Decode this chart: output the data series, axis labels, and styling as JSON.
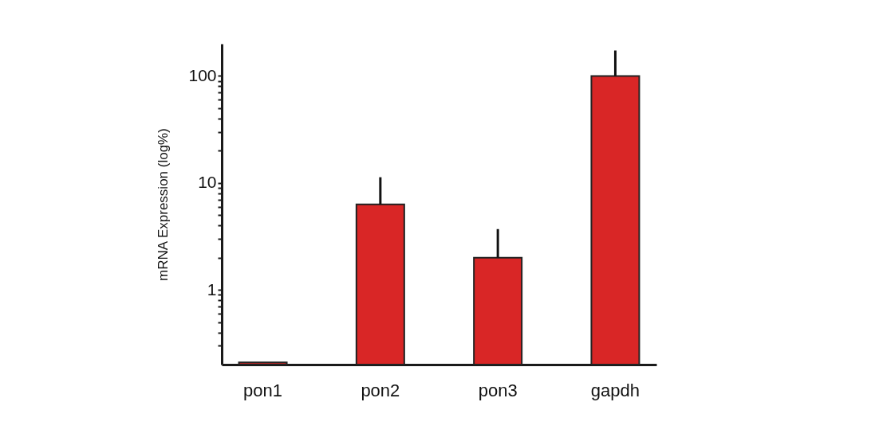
{
  "chart_data": {
    "type": "bar",
    "ylabel": "mRNA Expression (log%)",
    "categories": [
      "pon1",
      "pon2",
      "pon3",
      "gapdh"
    ],
    "series": [
      {
        "color": "#d92626",
        "values": [
          0.21,
          6.3,
          2.0,
          100
        ],
        "errors": [
          null,
          [
            6.3,
            11.3
          ],
          [
            2.0,
            3.7
          ],
          [
            100,
            173
          ]
        ]
      }
    ],
    "log": "y",
    "ylim": [
      0.2,
      200
    ],
    "yticks": [
      {
        "value": 0.3,
        "label": null
      },
      {
        "value": 0.4,
        "label": null
      },
      {
        "value": 0.5,
        "label": null
      },
      {
        "value": 0.6,
        "label": null
      },
      {
        "value": 0.7,
        "label": null
      },
      {
        "value": 0.8,
        "label": null
      },
      {
        "value": 0.9,
        "label": null
      },
      1,
      {
        "value": 2,
        "label": null
      },
      {
        "value": 3,
        "label": null
      },
      {
        "value": 4,
        "label": null
      },
      {
        "value": 5,
        "label": null
      },
      {
        "value": 6,
        "label": null
      },
      {
        "value": 7,
        "label": null
      },
      {
        "value": 8,
        "label": null
      },
      {
        "value": 9,
        "label": null
      },
      10,
      {
        "value": 20,
        "label": null
      },
      {
        "value": 30,
        "label": null
      },
      {
        "value": 40,
        "label": null
      },
      {
        "value": 50,
        "label": null
      },
      {
        "value": 60,
        "label": null
      },
      {
        "value": 70,
        "label": null
      },
      {
        "value": 80,
        "label": null
      },
      {
        "value": 90,
        "label": null
      },
      100
    ],
    "grid": false
  }
}
